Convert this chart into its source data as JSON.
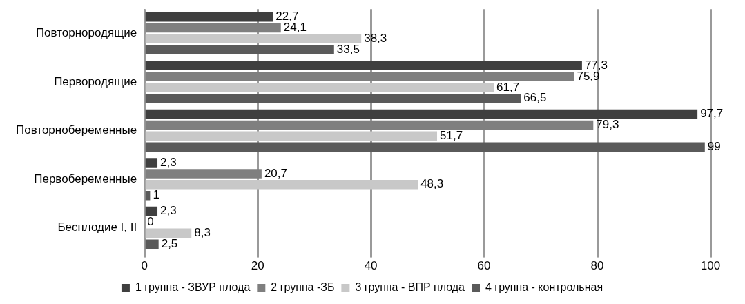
{
  "chart_data": {
    "type": "bar",
    "orientation": "horizontal",
    "categories": [
      "Повторнородящие",
      "Первородящие",
      "Повторнобеременные",
      "Первобеременные",
      "Бесплодие I, II"
    ],
    "series": [
      {
        "name": "1 группа - ЗВУР плода",
        "color": "#3f3f3f",
        "values": [
          22.7,
          77.3,
          97.7,
          2.3,
          2.3
        ],
        "value_labels": [
          "22,7",
          "77,3",
          "97,7",
          "2,3",
          "2,3"
        ]
      },
      {
        "name": "2 группа -ЗБ",
        "color": "#7f7f7f",
        "values": [
          24.1,
          75.9,
          79.3,
          20.7,
          0
        ],
        "value_labels": [
          "24,1",
          "75,9",
          "79,3",
          "20,7",
          "0"
        ]
      },
      {
        "name": "3 группа - ВПР плода",
        "color": "#c8c8c8",
        "values": [
          38.3,
          61.7,
          51.7,
          48.3,
          8.3
        ],
        "value_labels": [
          "38,3",
          "61,7",
          "51,7",
          "48,3",
          "8,3"
        ]
      },
      {
        "name": "4 группа - контрольная",
        "color": "#5a5a5a",
        "values": [
          33.5,
          66.5,
          99,
          1,
          2.5
        ],
        "value_labels": [
          "33,5",
          "66,5",
          "99",
          "1",
          "2,5"
        ]
      }
    ],
    "xlim": [
      0,
      100
    ],
    "xticks": [
      0,
      20,
      40,
      60,
      80,
      100
    ],
    "grid": "x",
    "legend": "bottom"
  }
}
